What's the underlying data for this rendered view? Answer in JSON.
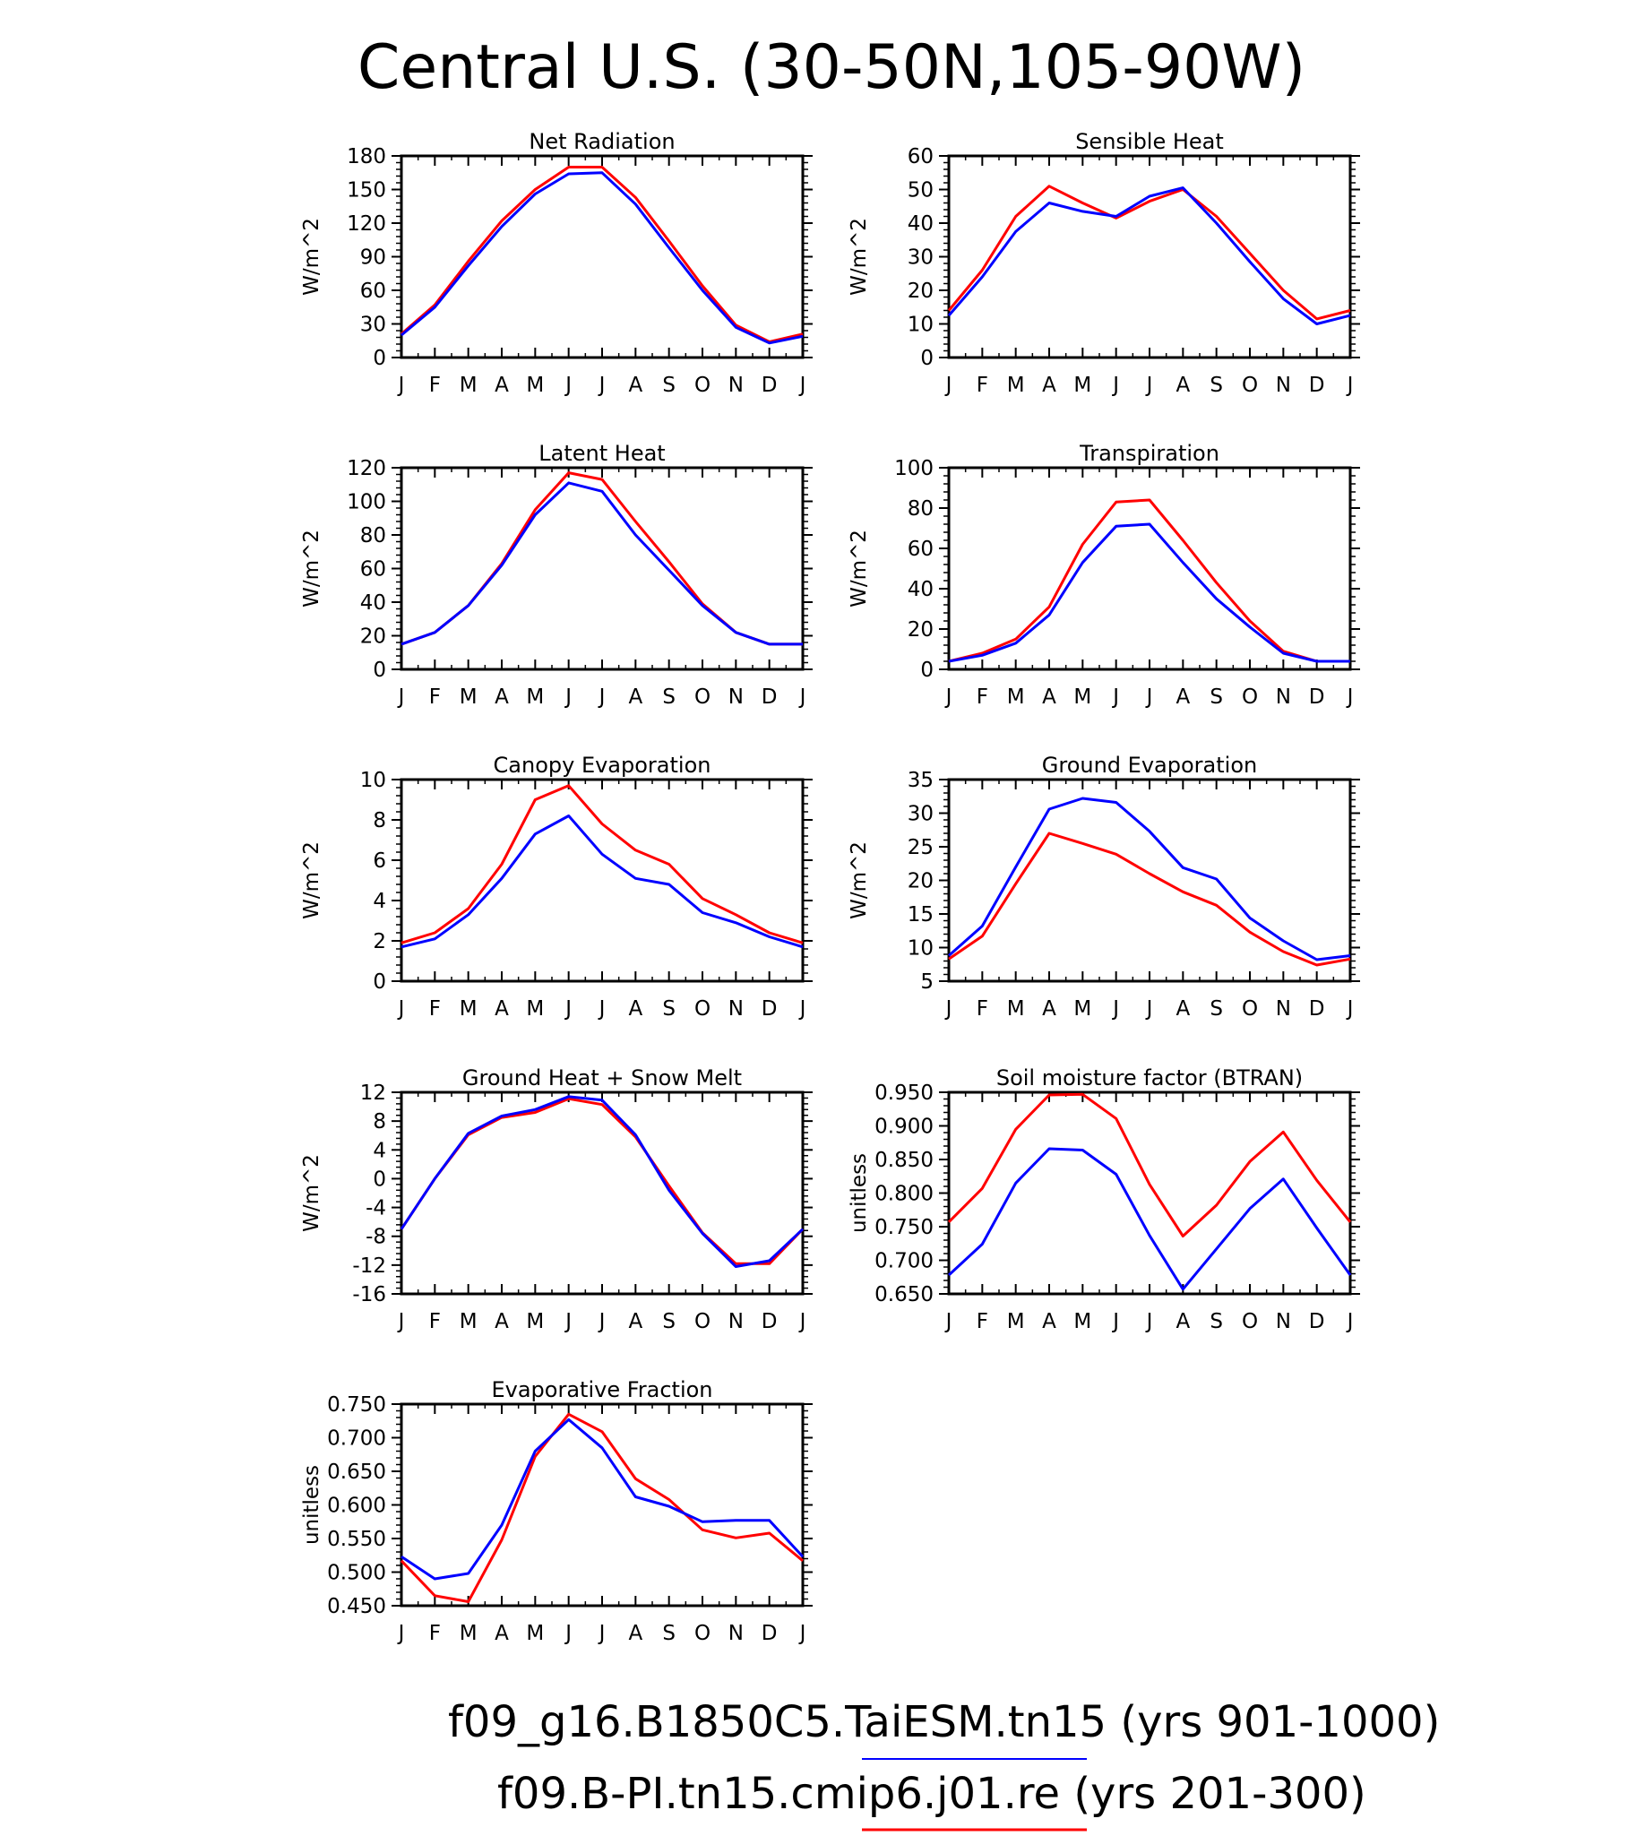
{
  "page": {
    "title": "Central U.S. (30-50N,105-90W)"
  },
  "legend": [
    {
      "label": "f09_g16.B1850C5.TaiESM.tn15 (yrs 901-1000)",
      "color": "#0000ff"
    },
    {
      "label": "f09.B-PI.tn15.cmip6.j01.re (yrs 201-300)",
      "color": "#ff0000"
    }
  ],
  "chart_data": [
    {
      "type": "line",
      "title": "Net Radiation",
      "ylabel": "W/m^2",
      "x": [
        "J",
        "F",
        "M",
        "A",
        "M",
        "J",
        "J",
        "A",
        "S",
        "O",
        "N",
        "D",
        "J"
      ],
      "ylim": [
        0,
        180
      ],
      "yticks": [
        "0",
        "30",
        "60",
        "90",
        "120",
        "150",
        "180"
      ],
      "series": [
        {
          "color": "#ff0000",
          "values": [
            21,
            47,
            86,
            122,
            150,
            170,
            170,
            143,
            104,
            64,
            29,
            14,
            21
          ]
        },
        {
          "color": "#0000ff",
          "values": [
            20,
            45,
            82,
            117,
            146,
            164,
            165,
            137,
            98,
            60,
            27,
            13,
            19
          ]
        }
      ]
    },
    {
      "type": "line",
      "title": "Sensible Heat",
      "ylabel": "W/m^2",
      "x": [
        "J",
        "F",
        "M",
        "A",
        "M",
        "J",
        "J",
        "A",
        "S",
        "O",
        "N",
        "D",
        "J"
      ],
      "ylim": [
        0,
        60
      ],
      "yticks": [
        "0",
        "10",
        "20",
        "30",
        "40",
        "50",
        "60"
      ],
      "series": [
        {
          "color": "#ff0000",
          "values": [
            14,
            26,
            42,
            51,
            46,
            41.5,
            46.5,
            50,
            42,
            31,
            20,
            11.5,
            14
          ]
        },
        {
          "color": "#0000ff",
          "values": [
            12.5,
            24,
            37.5,
            46,
            43.5,
            42,
            48,
            50.5,
            40,
            28.5,
            17.5,
            10,
            12.5
          ]
        }
      ]
    },
    {
      "type": "line",
      "title": "Latent Heat",
      "ylabel": "W/m^2",
      "x": [
        "J",
        "F",
        "M",
        "A",
        "M",
        "J",
        "J",
        "A",
        "S",
        "O",
        "N",
        "D",
        "J"
      ],
      "ylim": [
        0,
        120
      ],
      "yticks": [
        "0",
        "20",
        "40",
        "60",
        "80",
        "100",
        "120"
      ],
      "series": [
        {
          "color": "#ff0000",
          "values": [
            15,
            22,
            38,
            63,
            95,
            117,
            113,
            88,
            64,
            39,
            22,
            15,
            15
          ]
        },
        {
          "color": "#0000ff",
          "values": [
            15,
            22,
            38,
            62,
            92,
            111,
            106,
            80,
            59,
            38,
            22,
            15,
            15
          ]
        }
      ]
    },
    {
      "type": "line",
      "title": "Transpiration",
      "ylabel": "W/m^2",
      "x": [
        "J",
        "F",
        "M",
        "A",
        "M",
        "J",
        "J",
        "A",
        "S",
        "O",
        "N",
        "D",
        "J"
      ],
      "ylim": [
        0,
        100
      ],
      "yticks": [
        "0",
        "20",
        "40",
        "60",
        "80",
        "100"
      ],
      "series": [
        {
          "color": "#ff0000",
          "values": [
            4,
            8,
            15,
            31,
            62,
            83,
            84,
            64,
            43,
            24,
            9,
            4,
            4
          ]
        },
        {
          "color": "#0000ff",
          "values": [
            4,
            7,
            13,
            27,
            53,
            71,
            72,
            53,
            35,
            21,
            8,
            4,
            4
          ]
        }
      ]
    },
    {
      "type": "line",
      "title": "Canopy Evaporation",
      "ylabel": "W/m^2",
      "x": [
        "J",
        "F",
        "M",
        "A",
        "M",
        "J",
        "J",
        "A",
        "S",
        "O",
        "N",
        "D",
        "J"
      ],
      "ylim": [
        0,
        10
      ],
      "yticks": [
        "0",
        "2",
        "4",
        "6",
        "8",
        "10"
      ],
      "series": [
        {
          "color": "#ff0000",
          "values": [
            1.9,
            2.4,
            3.6,
            5.8,
            9.0,
            9.7,
            7.8,
            6.5,
            5.8,
            4.1,
            3.3,
            2.4,
            1.9
          ]
        },
        {
          "color": "#0000ff",
          "values": [
            1.7,
            2.1,
            3.3,
            5.1,
            7.3,
            8.2,
            6.3,
            5.1,
            4.8,
            3.4,
            2.9,
            2.2,
            1.7
          ]
        }
      ]
    },
    {
      "type": "line",
      "title": "Ground Evaporation",
      "ylabel": "W/m^2",
      "x": [
        "J",
        "F",
        "M",
        "A",
        "M",
        "J",
        "J",
        "A",
        "S",
        "O",
        "N",
        "D",
        "J"
      ],
      "ylim": [
        5,
        35
      ],
      "yticks": [
        "5",
        "10",
        "15",
        "20",
        "25",
        "30",
        "35"
      ],
      "series": [
        {
          "color": "#ff0000",
          "values": [
            8.3,
            11.7,
            19.5,
            27.0,
            25.5,
            23.9,
            21.0,
            18.3,
            16.3,
            12.3,
            9.4,
            7.4,
            8.3
          ]
        },
        {
          "color": "#0000ff",
          "values": [
            8.8,
            13.2,
            22.0,
            30.6,
            32.2,
            31.6,
            27.3,
            21.9,
            20.2,
            14.4,
            11.0,
            8.2,
            8.8
          ]
        }
      ]
    },
    {
      "type": "line",
      "title": "Ground Heat + Snow Melt",
      "ylabel": "W/m^2",
      "x": [
        "J",
        "F",
        "M",
        "A",
        "M",
        "J",
        "J",
        "A",
        "S",
        "O",
        "N",
        "D",
        "J"
      ],
      "ylim": [
        -16,
        12
      ],
      "yticks": [
        "-16",
        "-12",
        "-8",
        "-4",
        "0",
        "4",
        "8",
        "12"
      ],
      "series": [
        {
          "color": "#ff0000",
          "values": [
            -7,
            0,
            6.1,
            8.5,
            9.2,
            11.1,
            10.3,
            5.8,
            -1,
            -7.5,
            -11.8,
            -11.8,
            -7
          ]
        },
        {
          "color": "#0000ff",
          "values": [
            -7,
            0,
            6.3,
            8.7,
            9.6,
            11.4,
            10.9,
            6.1,
            -1.6,
            -7.6,
            -12.2,
            -11.4,
            -7
          ]
        }
      ]
    },
    {
      "type": "line",
      "title": "Soil moisture factor (BTRAN)",
      "ylabel": "unitless",
      "x": [
        "J",
        "F",
        "M",
        "A",
        "M",
        "J",
        "J",
        "A",
        "S",
        "O",
        "N",
        "D",
        "J"
      ],
      "ylim": [
        0.65,
        0.95
      ],
      "yticks": [
        "0.650",
        "0.700",
        "0.750",
        "0.800",
        "0.850",
        "0.900",
        "0.950"
      ],
      "series": [
        {
          "color": "#ff0000",
          "values": [
            0.757,
            0.807,
            0.895,
            0.946,
            0.947,
            0.911,
            0.813,
            0.736,
            0.782,
            0.847,
            0.891,
            0.819,
            0.757
          ]
        },
        {
          "color": "#0000ff",
          "values": [
            0.678,
            0.724,
            0.815,
            0.866,
            0.864,
            0.828,
            0.737,
            0.657,
            0.717,
            0.777,
            0.821,
            0.748,
            0.678
          ]
        }
      ]
    },
    {
      "type": "line",
      "title": "Evaporative Fraction",
      "ylabel": "unitless",
      "x": [
        "J",
        "F",
        "M",
        "A",
        "M",
        "J",
        "J",
        "A",
        "S",
        "O",
        "N",
        "D",
        "J"
      ],
      "ylim": [
        0.45,
        0.75
      ],
      "yticks": [
        "0.450",
        "0.500",
        "0.550",
        "0.600",
        "0.650",
        "0.700",
        "0.750"
      ],
      "series": [
        {
          "color": "#ff0000",
          "values": [
            0.517,
            0.465,
            0.456,
            0.548,
            0.672,
            0.735,
            0.709,
            0.639,
            0.608,
            0.563,
            0.551,
            0.558,
            0.517
          ]
        },
        {
          "color": "#0000ff",
          "values": [
            0.523,
            0.49,
            0.498,
            0.57,
            0.68,
            0.727,
            0.685,
            0.612,
            0.598,
            0.575,
            0.577,
            0.577,
            0.523
          ]
        }
      ]
    }
  ]
}
